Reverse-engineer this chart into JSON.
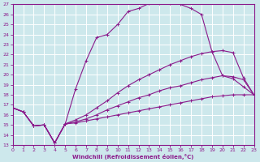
{
  "xlabel": "Windchill (Refroidissement éolien,°C)",
  "bg_color": "#cde8ec",
  "grid_color": "#ffffff",
  "line_color": "#8b1a8b",
  "xlim": [
    0,
    23
  ],
  "ylim": [
    13,
    27
  ],
  "xticks": [
    0,
    1,
    2,
    3,
    4,
    5,
    6,
    7,
    8,
    9,
    10,
    11,
    12,
    13,
    14,
    15,
    16,
    17,
    18,
    19,
    20,
    21,
    22,
    23
  ],
  "yticks": [
    13,
    14,
    15,
    16,
    17,
    18,
    19,
    20,
    21,
    22,
    23,
    24,
    25,
    26,
    27
  ],
  "curves": [
    {
      "x": [
        0,
        1,
        2,
        3,
        4,
        5,
        6,
        7,
        8,
        9,
        10,
        11,
        12,
        13,
        14,
        15,
        16,
        17,
        18,
        19,
        20,
        21,
        22,
        23
      ],
      "y": [
        16.7,
        16.3,
        14.9,
        15.0,
        13.2,
        15.1,
        18.6,
        21.4,
        23.7,
        24.0,
        25.0,
        26.3,
        26.6,
        27.1,
        27.1,
        27.1,
        27.0,
        26.6,
        26.0,
        22.3,
        19.9,
        19.6,
        18.8,
        18.0
      ]
    },
    {
      "x": [
        0,
        1,
        2,
        3,
        4,
        5,
        6,
        7,
        8,
        9,
        10,
        11,
        12,
        13,
        14,
        15,
        16,
        17,
        18,
        19,
        20,
        21,
        22,
        23
      ],
      "y": [
        16.7,
        16.3,
        14.9,
        15.0,
        13.2,
        15.1,
        15.5,
        16.0,
        16.7,
        17.4,
        18.2,
        18.9,
        19.5,
        20.0,
        20.5,
        21.0,
        21.4,
        21.8,
        22.1,
        22.3,
        22.4,
        22.2,
        19.7,
        18.0
      ]
    },
    {
      "x": [
        0,
        1,
        2,
        3,
        4,
        5,
        6,
        7,
        8,
        9,
        10,
        11,
        12,
        13,
        14,
        15,
        16,
        17,
        18,
        19,
        20,
        21,
        22,
        23
      ],
      "y": [
        16.7,
        16.3,
        14.9,
        15.0,
        13.2,
        15.1,
        15.3,
        15.6,
        16.0,
        16.5,
        16.9,
        17.3,
        17.7,
        18.0,
        18.4,
        18.7,
        18.9,
        19.2,
        19.5,
        19.7,
        19.9,
        19.8,
        19.5,
        18.0
      ]
    },
    {
      "x": [
        0,
        1,
        2,
        3,
        4,
        5,
        6,
        7,
        8,
        9,
        10,
        11,
        12,
        13,
        14,
        15,
        16,
        17,
        18,
        19,
        20,
        21,
        22,
        23
      ],
      "y": [
        16.7,
        16.3,
        14.9,
        15.0,
        13.2,
        15.1,
        15.2,
        15.4,
        15.6,
        15.8,
        16.0,
        16.2,
        16.4,
        16.6,
        16.8,
        17.0,
        17.2,
        17.4,
        17.6,
        17.8,
        17.9,
        18.0,
        18.0,
        18.0
      ]
    }
  ]
}
